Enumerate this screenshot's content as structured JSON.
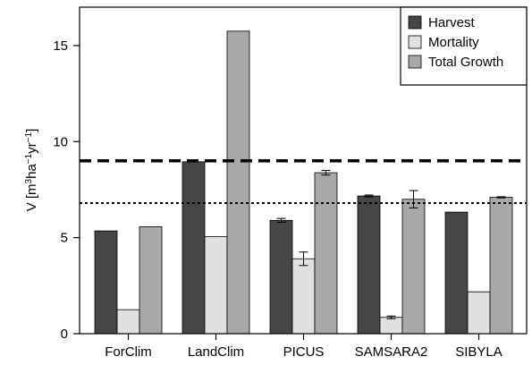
{
  "chart_data": {
    "type": "bar",
    "title": "",
    "xlabel": "",
    "ylabel": "V [m³ha⁻¹yr⁻¹]",
    "ylabel_parts": {
      "base": "V [m",
      "sup1": "3",
      "mid1": "ha",
      "sup2": "−1",
      "mid2": "yr",
      "sup3": "−1",
      "end": "]"
    },
    "ylim": [
      0,
      17
    ],
    "yticks": [
      0,
      5,
      10,
      15
    ],
    "ytick_labels": [
      "0",
      "5",
      "10",
      "15"
    ],
    "categories": [
      "ForClim",
      "LandClim",
      "PICUS",
      "SAMSARA2",
      "SIBYLA"
    ],
    "series": [
      {
        "name": "Harvest",
        "color": "#464646",
        "values": [
          5.35,
          8.95,
          5.9,
          7.17,
          6.33
        ],
        "errors": [
          0,
          0,
          0.1,
          0.05,
          0
        ]
      },
      {
        "name": "Mortality",
        "color": "#e0e0e0",
        "values": [
          1.25,
          5.05,
          3.9,
          0.85,
          2.18
        ],
        "errors": [
          0,
          0,
          0.35,
          0.07,
          0
        ]
      },
      {
        "name": "Total Growth",
        "color": "#a8a8a8",
        "values": [
          5.57,
          15.75,
          8.38,
          7.0,
          7.1
        ],
        "errors": [
          0,
          0,
          0.12,
          0.45,
          0.03
        ]
      }
    ],
    "reference_lines": [
      {
        "value": 9.0,
        "style": "long-dashed"
      },
      {
        "value": 6.8,
        "style": "dotted"
      }
    ],
    "legend": {
      "position": "top-right"
    },
    "grid": false
  }
}
